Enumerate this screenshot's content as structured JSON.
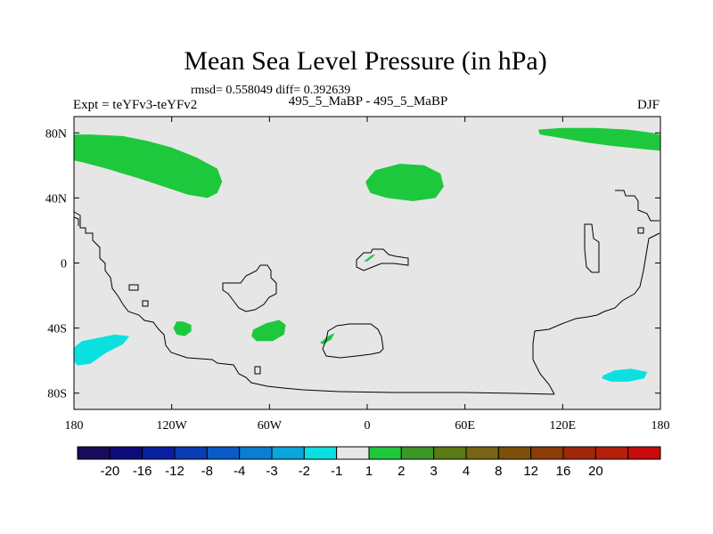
{
  "chart_data": {
    "type": "heatmap",
    "title": "Mean Sea Level Pressure (in hPa)",
    "stats_text": "rmsd= 0.558049 diff= 0.392639",
    "left_label": "Expt = teYFv3-teYFv2",
    "center_label": "495_5_MaBP - 495_5_MaBP",
    "right_label": "DJF",
    "x_axis": {
      "range": [
        -180,
        180
      ],
      "ticks": [
        {
          "value": -180,
          "label": "180"
        },
        {
          "value": -120,
          "label": "120W"
        },
        {
          "value": -60,
          "label": "60W"
        },
        {
          "value": 0,
          "label": "0"
        },
        {
          "value": 60,
          "label": "60E"
        },
        {
          "value": 120,
          "label": "120E"
        },
        {
          "value": 180,
          "label": "180"
        }
      ]
    },
    "y_axis": {
      "range": [
        -90,
        90
      ],
      "ticks": [
        {
          "value": 80,
          "label": "80N"
        },
        {
          "value": 40,
          "label": "40N"
        },
        {
          "value": 0,
          "label": "0"
        },
        {
          "value": -40,
          "label": "40S"
        },
        {
          "value": -80,
          "label": "80S"
        }
      ]
    },
    "background_color": "#e6e6e6",
    "colorbar": {
      "colors": [
        "#1a0a5a",
        "#0c0c7a",
        "#0a1fa0",
        "#0a3cb4",
        "#0a5ac8",
        "#0a7ed2",
        "#0aa5dc",
        "#0ae0e0",
        "#e6e6e6",
        "#1ec83c",
        "#3c9628",
        "#5a7a14",
        "#786414",
        "#7a500a",
        "#8c3c0a",
        "#a0280a",
        "#b41e0a",
        "#c80a0a"
      ],
      "labels": [
        "-20",
        "-16",
        "-12",
        "-8",
        "-4",
        "-3",
        "-2",
        "-1",
        "1",
        "2",
        "3",
        "4",
        "8",
        "12",
        "16",
        "20"
      ]
    },
    "regions": [
      {
        "name": "arctic-pacific",
        "sign": "positive",
        "level": "1 to 2",
        "color": "#1ec83c",
        "lonlat": [
          [
            -180,
            79
          ],
          [
            -170,
            79
          ],
          [
            -150,
            78
          ],
          [
            -135,
            75
          ],
          [
            -120,
            71
          ],
          [
            -105,
            65
          ],
          [
            -92,
            58
          ],
          [
            -89,
            50
          ],
          [
            -92,
            43
          ],
          [
            -98,
            40
          ],
          [
            -110,
            42
          ],
          [
            -125,
            47
          ],
          [
            -140,
            52
          ],
          [
            -160,
            58
          ],
          [
            -175,
            62
          ],
          [
            -180,
            63
          ]
        ]
      },
      {
        "name": "arctic-asia",
        "sign": "positive",
        "level": "1 to 2",
        "color": "#1ec83c",
        "lonlat": [
          [
            105,
            82
          ],
          [
            120,
            83
          ],
          [
            140,
            83
          ],
          [
            160,
            82
          ],
          [
            175,
            80
          ],
          [
            180,
            79
          ],
          [
            180,
            69
          ],
          [
            170,
            70
          ],
          [
            150,
            72
          ],
          [
            135,
            74
          ],
          [
            118,
            77
          ],
          [
            106,
            79
          ]
        ]
      },
      {
        "name": "north-atlantic-europe",
        "sign": "positive",
        "level": "1 to 2",
        "color": "#1ec83c",
        "lonlat": [
          [
            -1,
            50
          ],
          [
            5,
            57
          ],
          [
            20,
            61
          ],
          [
            35,
            60
          ],
          [
            45,
            55
          ],
          [
            47,
            47
          ],
          [
            42,
            40
          ],
          [
            28,
            38
          ],
          [
            12,
            40
          ],
          [
            2,
            43
          ],
          [
            0,
            47
          ]
        ]
      },
      {
        "name": "south-pacific-east",
        "sign": "positive",
        "level": "1 to 2",
        "color": "#1ec83c",
        "lonlat": [
          [
            -117,
            -36
          ],
          [
            -113,
            -36
          ],
          [
            -108,
            -38
          ],
          [
            -108,
            -42
          ],
          [
            -112,
            -45
          ],
          [
            -117,
            -44
          ],
          [
            -119,
            -40
          ]
        ]
      },
      {
        "name": "south-atlantic-west",
        "sign": "positive",
        "level": "1 to 2",
        "color": "#1ec83c",
        "lonlat": [
          [
            -70,
            -41
          ],
          [
            -62,
            -37
          ],
          [
            -54,
            -35
          ],
          [
            -50,
            -38
          ],
          [
            -51,
            -44
          ],
          [
            -58,
            -48
          ],
          [
            -68,
            -48
          ],
          [
            -71,
            -45
          ]
        ]
      },
      {
        "name": "south-atlantic-central",
        "sign": "positive",
        "level": "1 to 2",
        "color": "#1ec83c",
        "lonlat": [
          [
            -29,
            -49
          ],
          [
            -24,
            -45
          ],
          [
            -20,
            -43
          ],
          [
            -22,
            -47
          ],
          [
            -27,
            -50
          ]
        ]
      },
      {
        "name": "equatorial-africa-sliver",
        "sign": "positive",
        "level": "1 to 2",
        "color": "#1ec83c",
        "lonlat": [
          [
            -2,
            1
          ],
          [
            3,
            5
          ],
          [
            5,
            5
          ],
          [
            0,
            1
          ]
        ]
      },
      {
        "name": "southern-ocean-pacific",
        "sign": "negative",
        "level": "-2 to -1",
        "color": "#0ae0e0",
        "lonlat": [
          [
            -180,
            -52
          ],
          [
            -175,
            -48
          ],
          [
            -165,
            -46
          ],
          [
            -155,
            -44
          ],
          [
            -146,
            -45
          ],
          [
            -150,
            -50
          ],
          [
            -160,
            -55
          ],
          [
            -170,
            -62
          ],
          [
            -178,
            -63
          ],
          [
            -180,
            -60
          ]
        ]
      },
      {
        "name": "southern-ocean-australia",
        "sign": "negative",
        "level": "-2 to -1",
        "color": "#0ae0e0",
        "lonlat": [
          [
            145,
            -69
          ],
          [
            152,
            -66
          ],
          [
            162,
            -65
          ],
          [
            172,
            -67
          ],
          [
            170,
            -71
          ],
          [
            160,
            -73
          ],
          [
            150,
            -73
          ],
          [
            144,
            -71
          ]
        ]
      }
    ],
    "region_fill_alpha": 1
  }
}
